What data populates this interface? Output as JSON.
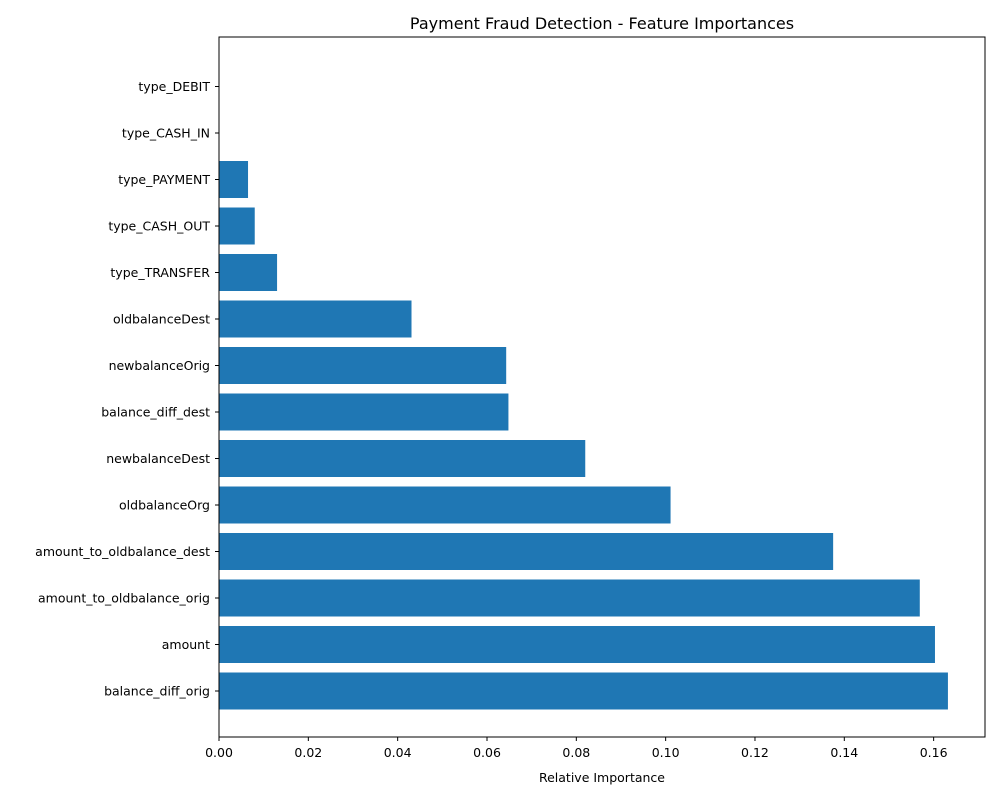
{
  "chart_data": {
    "type": "bar",
    "orientation": "horizontal",
    "title": "Payment Fraud Detection - Feature Importances",
    "xlabel": "Relative Importance",
    "ylabel": "",
    "xlim": [
      0,
      0.1715
    ],
    "xticks": [
      0.0,
      0.02,
      0.04,
      0.06,
      0.08,
      0.1,
      0.12,
      0.14,
      0.16
    ],
    "xtick_labels": [
      "0.00",
      "0.02",
      "0.04",
      "0.06",
      "0.08",
      "0.10",
      "0.12",
      "0.14",
      "0.16"
    ],
    "grid": false,
    "color": "#1f77b4",
    "categories": [
      "balance_diff_orig",
      "amount",
      "amount_to_oldbalance_orig",
      "amount_to_oldbalance_dest",
      "oldbalanceOrg",
      "newbalanceDest",
      "balance_diff_dest",
      "newbalanceOrig",
      "oldbalanceDest",
      "type_TRANSFER",
      "type_CASH_OUT",
      "type_PAYMENT",
      "type_CASH_IN",
      "type_DEBIT"
    ],
    "values": [
      0.1632,
      0.1603,
      0.1569,
      0.1375,
      0.1011,
      0.082,
      0.0648,
      0.0643,
      0.0431,
      0.013,
      0.008,
      0.0065,
      0.0,
      0.0
    ]
  }
}
